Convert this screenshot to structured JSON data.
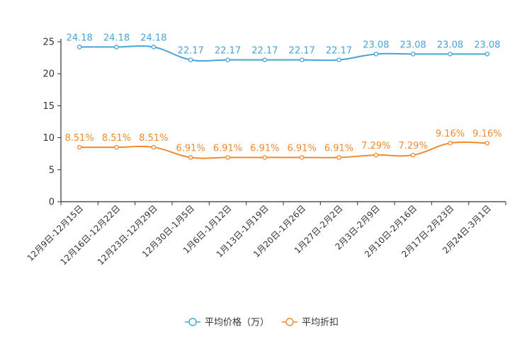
{
  "chart_data": {
    "type": "line",
    "categories": [
      "12月9日-12月15日",
      "12月16日-12月22日",
      "12月23日-12月29日",
      "12月30日-1月5日",
      "1月6日-1月12日",
      "1月13日-1月19日",
      "1月20日-1月26日",
      "1月27日-2月2日",
      "2月3日-2月9日",
      "2月10日-2月16日",
      "2月17日-2月23日",
      "2月24日-3月1日"
    ],
    "y_ticks": [
      "0",
      "5",
      "10",
      "15",
      "20",
      "25"
    ],
    "ylim": [
      0,
      25
    ],
    "title": "",
    "xlabel": "",
    "ylabel": "",
    "legend_position": "bottom",
    "series": [
      {
        "name": "平均价格（万）",
        "color": "#4aa3d6",
        "values": [
          24.18,
          24.18,
          24.18,
          22.17,
          22.17,
          22.17,
          22.17,
          22.17,
          23.08,
          23.08,
          23.08,
          23.08
        ],
        "labels": [
          "24.18",
          "24.18",
          "24.18",
          "22.17",
          "22.17",
          "22.17",
          "22.17",
          "22.17",
          "23.08",
          "23.08",
          "23.08",
          "23.08"
        ]
      },
      {
        "name": "平均折扣",
        "color": "#f08a2e",
        "values": [
          8.51,
          8.51,
          8.51,
          6.91,
          6.91,
          6.91,
          6.91,
          6.91,
          7.29,
          7.29,
          9.16,
          9.16
        ],
        "labels": [
          "8.51%",
          "8.51%",
          "8.51%",
          "6.91%",
          "6.91%",
          "6.91%",
          "6.91%",
          "6.91%",
          "7.29%",
          "7.29%",
          "9.16%",
          "9.16%"
        ]
      }
    ]
  }
}
